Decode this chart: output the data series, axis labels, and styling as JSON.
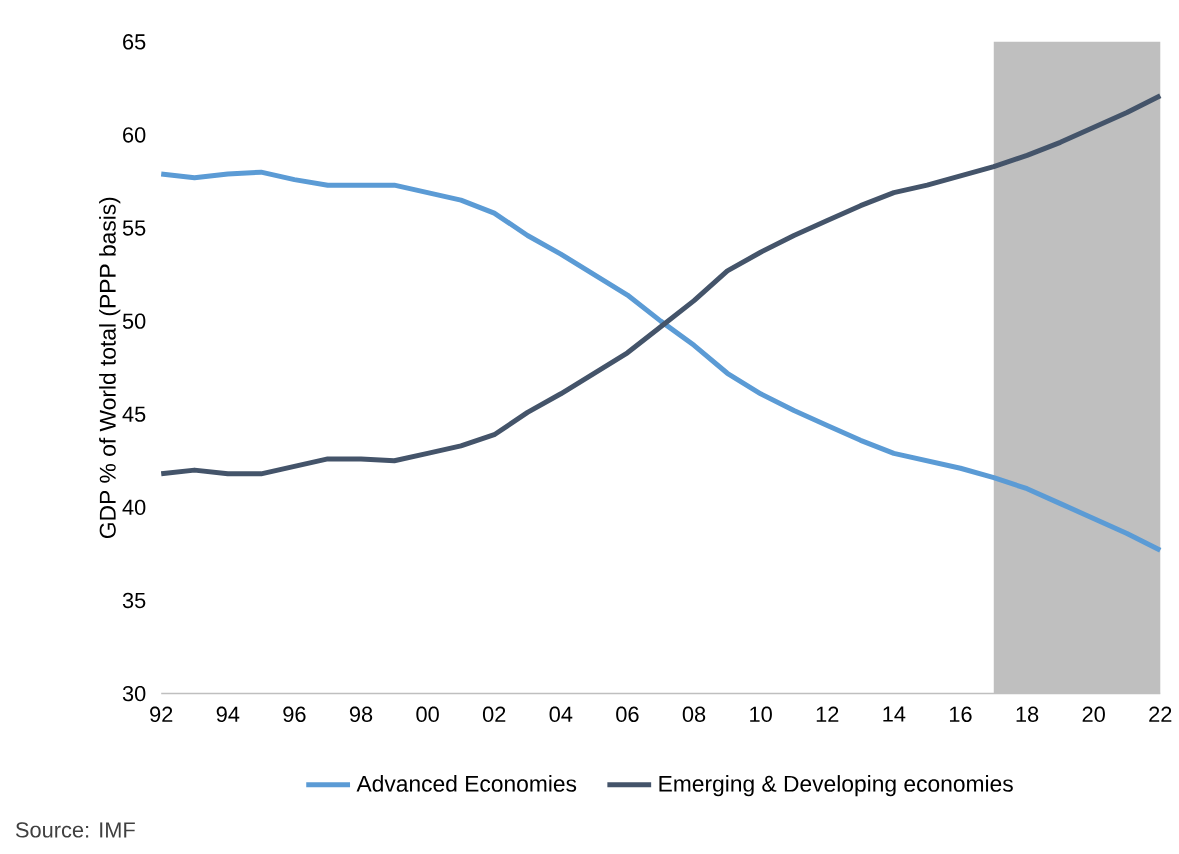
{
  "chart_data": {
    "type": "line",
    "ylabel": "GDP % of World total (PPP basis)",
    "x": [
      1992,
      1993,
      1994,
      1995,
      1996,
      1997,
      1998,
      1999,
      2000,
      2001,
      2002,
      2003,
      2004,
      2005,
      2006,
      2007,
      2008,
      2009,
      2010,
      2011,
      2012,
      2013,
      2014,
      2015,
      2016,
      2017,
      2018,
      2019,
      2020,
      2021,
      2022
    ],
    "series": [
      {
        "name": "Advanced Economies",
        "color": "#5b9bd5",
        "values": [
          57.9,
          57.7,
          57.9,
          58.0,
          57.6,
          57.3,
          57.3,
          57.3,
          56.9,
          56.5,
          55.8,
          54.6,
          53.6,
          52.5,
          51.4,
          50.0,
          48.7,
          47.2,
          46.1,
          45.2,
          44.4,
          43.6,
          42.9,
          42.5,
          42.1,
          41.6,
          41.0,
          40.2,
          39.4,
          38.6,
          37.7
        ]
      },
      {
        "name": "Emerging & Developing economies",
        "color": "#44546a",
        "values": [
          41.8,
          42.0,
          41.8,
          41.8,
          42.2,
          42.6,
          42.6,
          42.5,
          42.9,
          43.3,
          43.9,
          45.1,
          46.1,
          47.2,
          48.3,
          49.7,
          51.1,
          52.7,
          53.7,
          54.6,
          55.4,
          56.2,
          56.9,
          57.3,
          57.8,
          58.3,
          58.9,
          59.6,
          60.4,
          61.2,
          62.1
        ]
      }
    ],
    "xlim": [
      1992,
      2022
    ],
    "xticks": [
      {
        "value": 1992,
        "label": "92"
      },
      {
        "value": 1994,
        "label": "94"
      },
      {
        "value": 1996,
        "label": "96"
      },
      {
        "value": 1998,
        "label": "98"
      },
      {
        "value": 2000,
        "label": "00"
      },
      {
        "value": 2002,
        "label": "02"
      },
      {
        "value": 2004,
        "label": "04"
      },
      {
        "value": 2006,
        "label": "06"
      },
      {
        "value": 2008,
        "label": "08"
      },
      {
        "value": 2010,
        "label": "10"
      },
      {
        "value": 2012,
        "label": "12"
      },
      {
        "value": 2014,
        "label": "14"
      },
      {
        "value": 2016,
        "label": "16"
      },
      {
        "value": 2018,
        "label": "18"
      },
      {
        "value": 2020,
        "label": "20"
      },
      {
        "value": 2022,
        "label": "22"
      }
    ],
    "ylim": [
      30,
      65
    ],
    "yticks": [
      30,
      35,
      40,
      45,
      50,
      55,
      60,
      65
    ],
    "bands": [
      {
        "axis": "x",
        "from": 2017,
        "to": 2022,
        "color": "#bfbfbf"
      }
    ],
    "legend": "bottom",
    "grid": false,
    "annotations": [
      "Source: IMF"
    ]
  }
}
